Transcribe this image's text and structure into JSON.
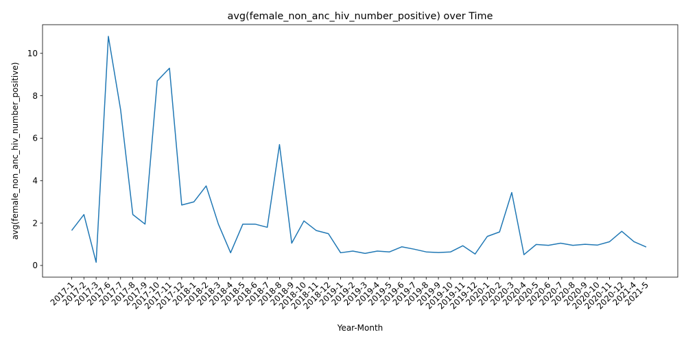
{
  "chart_data": {
    "type": "line",
    "title": "avg(female_non_anc_hiv_number_positive) over Time",
    "xlabel": "Year-Month",
    "ylabel": "avg(female_non_anc_hiv_number_positive)",
    "ylim": [
      -0.55,
      11.35
    ],
    "yticks": [
      0,
      2,
      4,
      6,
      8,
      10
    ],
    "grid": false,
    "line_color": "#1f77b4",
    "categories": [
      "2017-1",
      "2017-2",
      "2017-3",
      "2017-6",
      "2017-7",
      "2017-8",
      "2017-9",
      "2017-10",
      "2017-11",
      "2017-12",
      "2018-1",
      "2018-2",
      "2018-3",
      "2018-4",
      "2018-5",
      "2018-6",
      "2018-7",
      "2018-8",
      "2018-9",
      "2018-10",
      "2018-11",
      "2018-12",
      "2019-1",
      "2019-2",
      "2019-3",
      "2019-4",
      "2019-5",
      "2019-6",
      "2019-7",
      "2019-8",
      "2019-9",
      "2019-10",
      "2019-11",
      "2019-12",
      "2020-1",
      "2020-2",
      "2020-3",
      "2020-4",
      "2020-5",
      "2020-6",
      "2020-7",
      "2020-8",
      "2020-9",
      "2020-10",
      "2020-11",
      "2020-12",
      "2021-4",
      "2021-5"
    ],
    "values": [
      1.65,
      2.4,
      0.15,
      10.8,
      7.35,
      2.4,
      1.95,
      8.7,
      9.3,
      2.85,
      3.0,
      3.75,
      1.95,
      0.6,
      1.95,
      1.95,
      1.8,
      5.7,
      1.05,
      2.1,
      1.65,
      1.5,
      0.6,
      0.68,
      0.57,
      0.68,
      0.64,
      0.88,
      0.77,
      0.64,
      0.61,
      0.64,
      0.93,
      0.54,
      1.37,
      1.58,
      3.44,
      0.51,
      0.99,
      0.95,
      1.05,
      0.95,
      1.0,
      0.96,
      1.12,
      1.61,
      1.12,
      0.87
    ]
  }
}
